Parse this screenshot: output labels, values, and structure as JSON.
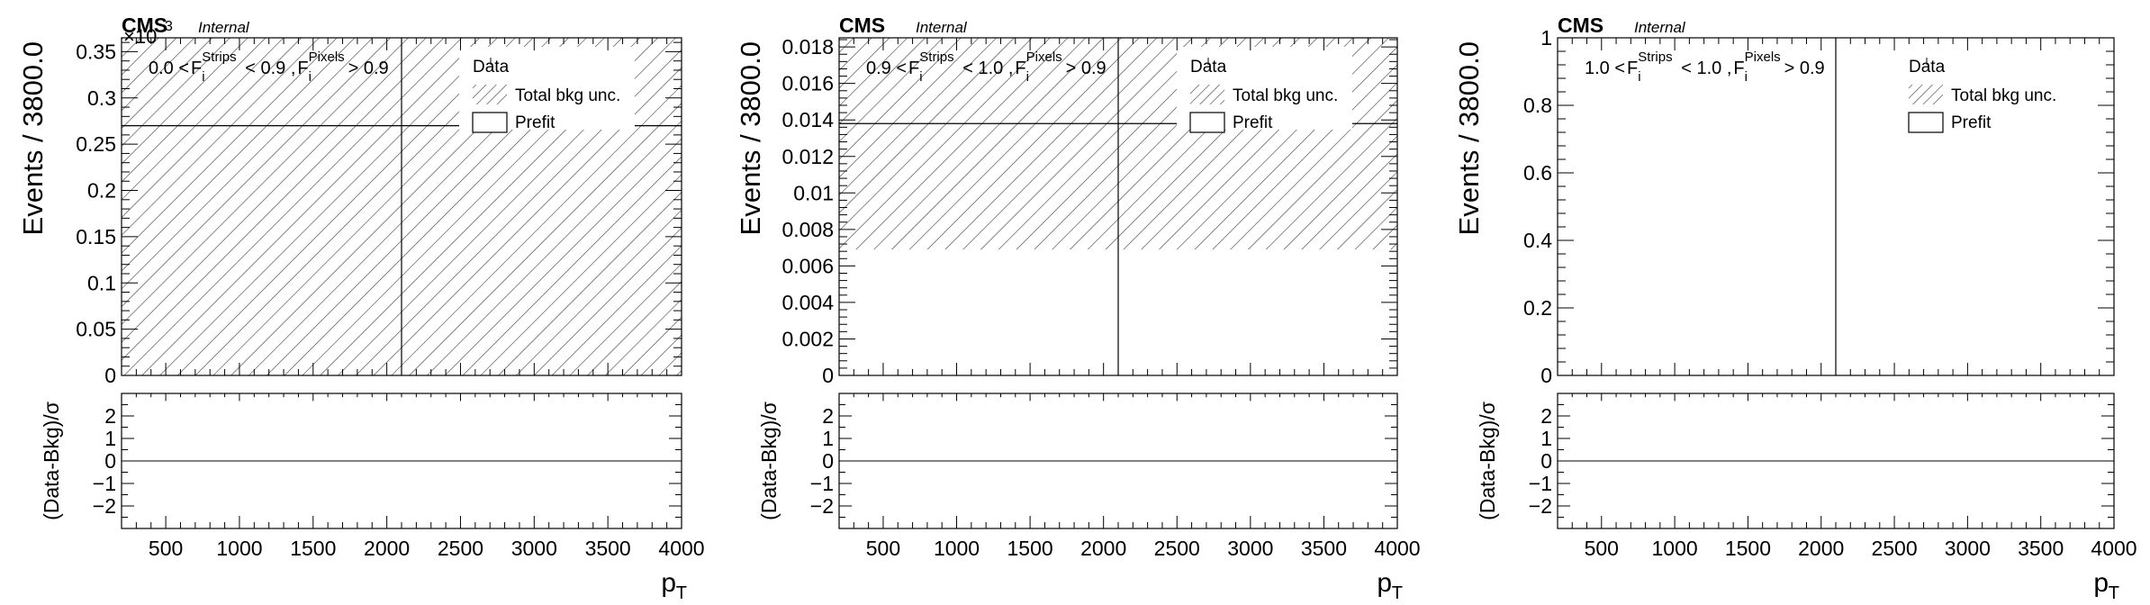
{
  "chart_data": [
    {
      "type": "histogram",
      "cms_label": "CMS",
      "cms_sublabel": "Internal",
      "exponent_label": "×10",
      "exponent_power": "3",
      "region_label": {
        "low": "0.0",
        "high": "0.9",
        "pixel_cut": "0.9",
        "strips_text": "Strips",
        "pixels_text": "Pixels",
        "f_text": "F",
        "i_text": "i"
      },
      "ylabel": "Events / 3800.0",
      "xlabel": "p",
      "xlabel_sub": "T",
      "ratio_ylabel": "(Data-Bkg)/σ",
      "xlim": [
        200,
        4000
      ],
      "ylim": [
        0,
        0.365
      ],
      "ratio_ylim": [
        -3,
        3
      ],
      "x_ticks": [
        "500",
        "1000",
        "1500",
        "2000",
        "2500",
        "3000",
        "3500",
        "4000"
      ],
      "y_ticks": [
        "0",
        "0.05",
        "0.1",
        "0.15",
        "0.2",
        "0.25",
        "0.3",
        "0.35"
      ],
      "ratio_ticks": [
        "−2",
        "−1",
        "0",
        "1",
        "2"
      ],
      "prefit_value": 0.27,
      "unc_band": [
        0,
        0.365
      ],
      "data_marker_x": 2100,
      "legend": [
        "Data",
        "Total bkg unc.",
        "Prefit"
      ]
    },
    {
      "type": "histogram",
      "cms_label": "CMS",
      "cms_sublabel": "Internal",
      "region_label": {
        "low": "0.9",
        "high": "1.0",
        "pixel_cut": "0.9",
        "strips_text": "Strips",
        "pixels_text": "Pixels",
        "f_text": "F",
        "i_text": "i"
      },
      "ylabel": "Events / 3800.0",
      "xlabel": "p",
      "xlabel_sub": "T",
      "ratio_ylabel": "(Data-Bkg)/σ",
      "xlim": [
        200,
        4000
      ],
      "ylim": [
        0,
        0.0185
      ],
      "ratio_ylim": [
        -3,
        3
      ],
      "x_ticks": [
        "500",
        "1000",
        "1500",
        "2000",
        "2500",
        "3000",
        "3500",
        "4000"
      ],
      "y_ticks": [
        "0",
        "0.002",
        "0.004",
        "0.006",
        "0.008",
        "0.01",
        "0.012",
        "0.014",
        "0.016",
        "0.018"
      ],
      "ratio_ticks": [
        "−2",
        "−1",
        "0",
        "1",
        "2"
      ],
      "prefit_value": 0.0138,
      "unc_band": [
        0.0069,
        0.0185
      ],
      "data_marker_x": 2100,
      "legend": [
        "Data",
        "Total bkg unc.",
        "Prefit"
      ]
    },
    {
      "type": "histogram",
      "cms_label": "CMS",
      "cms_sublabel": "Internal",
      "region_label": {
        "low": "1.0",
        "high": "1.0",
        "pixel_cut": "0.9",
        "strips_text": "Strips",
        "pixels_text": "Pixels",
        "f_text": "F",
        "i_text": "i"
      },
      "ylabel": "Events / 3800.0",
      "xlabel": "p",
      "xlabel_sub": "T",
      "ratio_ylabel": "(Data-Bkg)/σ",
      "xlim": [
        200,
        4000
      ],
      "ylim": [
        0,
        1
      ],
      "ratio_ylim": [
        -3,
        3
      ],
      "x_ticks": [
        "500",
        "1000",
        "1500",
        "2000",
        "2500",
        "3000",
        "3500",
        "4000"
      ],
      "y_ticks": [
        "0",
        "0.2",
        "0.4",
        "0.6",
        "0.8",
        "1"
      ],
      "ratio_ticks": [
        "−2",
        "−1",
        "0",
        "1",
        "2"
      ],
      "prefit_value": null,
      "unc_band": null,
      "data_marker_x": 2100,
      "legend": [
        "Data",
        "Total bkg unc.",
        "Prefit"
      ]
    }
  ]
}
